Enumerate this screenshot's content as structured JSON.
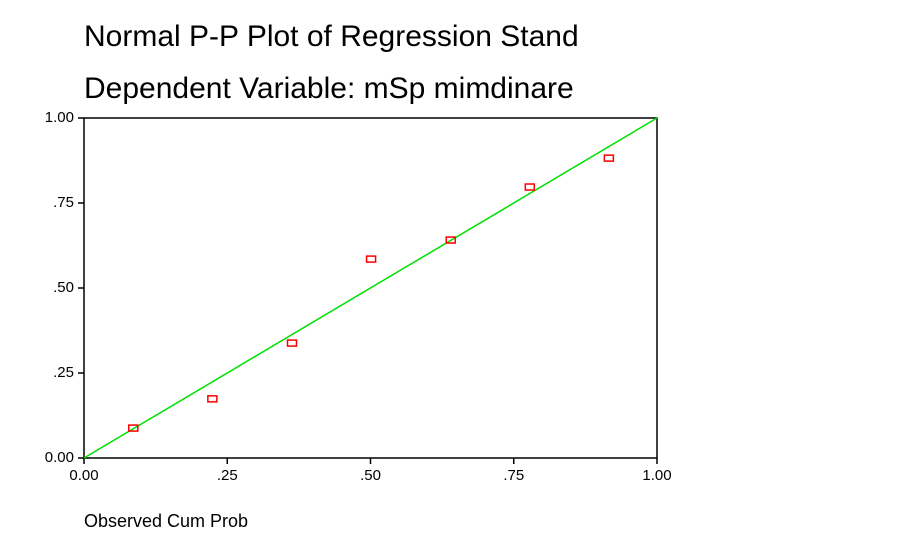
{
  "chart_data": {
    "type": "scatter",
    "title": "Normal P-P Plot of Regression Stand",
    "subtitle": "Dependent Variable: mSp mimdinare",
    "x_label": "Observed Cum Prob",
    "series": [
      {
        "name": "Observed",
        "color": "#ff0000",
        "x": [
          0.086,
          0.224,
          0.363,
          0.501,
          0.64,
          0.778,
          0.916
        ],
        "values": [
          0.088,
          0.174,
          0.338,
          0.585,
          0.641,
          0.797,
          0.882
        ]
      }
    ],
    "reference_line": {
      "x": [
        0,
        1
      ],
      "y": [
        0,
        1
      ],
      "color": "#00e000"
    },
    "xlim": [
      0,
      1
    ],
    "ylim": [
      0,
      1
    ],
    "xticks": [
      {
        "value": 0,
        "label": "0.00"
      },
      {
        "value": 0.25,
        "label": ".25"
      },
      {
        "value": 0.5,
        "label": ".50"
      },
      {
        "value": 0.75,
        "label": ".75"
      },
      {
        "value": 1,
        "label": "1.00"
      }
    ],
    "yticks": [
      {
        "value": 0,
        "label": "0.00"
      },
      {
        "value": 0.25,
        "label": ".25"
      },
      {
        "value": 0.5,
        "label": ".50"
      },
      {
        "value": 0.75,
        "label": ".75"
      },
      {
        "value": 1,
        "label": "1.00"
      }
    ],
    "grid": false
  }
}
